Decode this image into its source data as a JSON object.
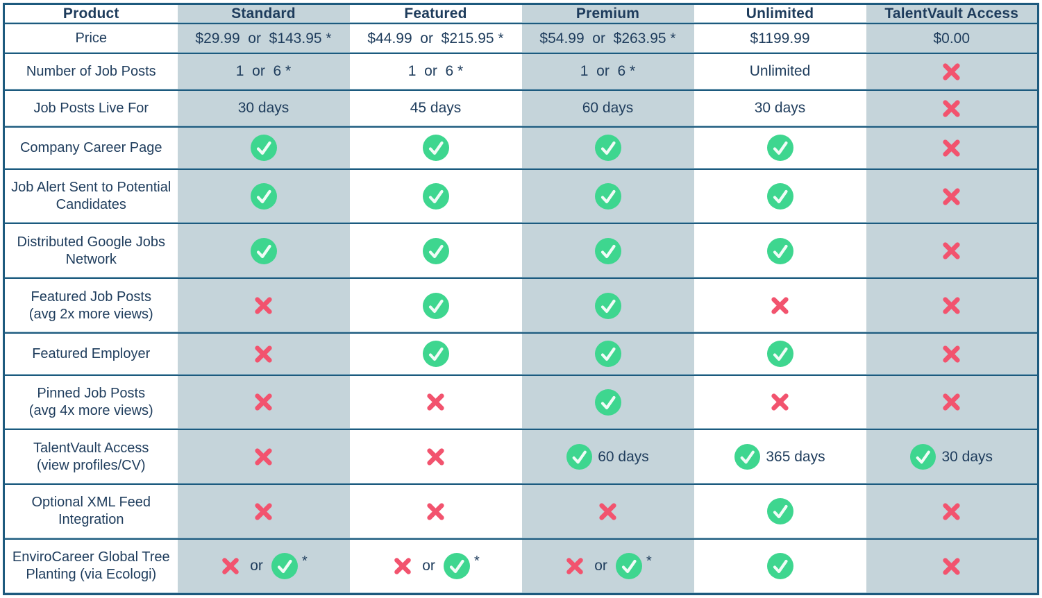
{
  "chart_data": {
    "type": "table",
    "columns": [
      "Product",
      "Standard",
      "Featured",
      "Premium",
      "Unlimited",
      "TalentVault Access"
    ],
    "rows": [
      {
        "label": "Price",
        "cells": [
          {
            "type": "text",
            "value": "$29.99  or  $143.95 *"
          },
          {
            "type": "text",
            "value": "$44.99  or  $215.95 *"
          },
          {
            "type": "text",
            "value": "$54.99  or  $263.95 *"
          },
          {
            "type": "text",
            "value": "$1199.99"
          },
          {
            "type": "text",
            "value": "$0.00"
          }
        ]
      },
      {
        "label": "Number of Job Posts",
        "cells": [
          {
            "type": "text",
            "value": "1  or  6 *"
          },
          {
            "type": "text",
            "value": "1  or  6 *"
          },
          {
            "type": "text",
            "value": "1  or  6 *"
          },
          {
            "type": "text",
            "value": "Unlimited"
          },
          {
            "type": "cross"
          }
        ]
      },
      {
        "label": "Job Posts Live For",
        "cells": [
          {
            "type": "text",
            "value": "30 days"
          },
          {
            "type": "text",
            "value": "45 days"
          },
          {
            "type": "text",
            "value": "60 days"
          },
          {
            "type": "text",
            "value": "30 days"
          },
          {
            "type": "cross"
          }
        ]
      },
      {
        "label": "Company Career Page",
        "cells": [
          {
            "type": "check"
          },
          {
            "type": "check"
          },
          {
            "type": "check"
          },
          {
            "type": "check"
          },
          {
            "type": "cross"
          }
        ]
      },
      {
        "label": "Job Alert Sent to Potential\nCandidates",
        "cells": [
          {
            "type": "check"
          },
          {
            "type": "check"
          },
          {
            "type": "check"
          },
          {
            "type": "check"
          },
          {
            "type": "cross"
          }
        ]
      },
      {
        "label": "Distributed Google Jobs\nNetwork",
        "cells": [
          {
            "type": "check"
          },
          {
            "type": "check"
          },
          {
            "type": "check"
          },
          {
            "type": "check"
          },
          {
            "type": "cross"
          }
        ]
      },
      {
        "label": "Featured Job Posts\n(avg 2x more views)",
        "cells": [
          {
            "type": "cross"
          },
          {
            "type": "check"
          },
          {
            "type": "check"
          },
          {
            "type": "cross"
          },
          {
            "type": "cross"
          }
        ]
      },
      {
        "label": "Featured Employer",
        "cells": [
          {
            "type": "cross"
          },
          {
            "type": "check"
          },
          {
            "type": "check"
          },
          {
            "type": "check"
          },
          {
            "type": "cross"
          }
        ]
      },
      {
        "label": "Pinned Job Posts\n(avg 4x more views)",
        "cells": [
          {
            "type": "cross"
          },
          {
            "type": "cross"
          },
          {
            "type": "check"
          },
          {
            "type": "cross"
          },
          {
            "type": "cross"
          }
        ]
      },
      {
        "label": "TalentVault Access\n(view profiles/CV)",
        "cells": [
          {
            "type": "cross"
          },
          {
            "type": "cross"
          },
          {
            "type": "check_text",
            "value": "60 days"
          },
          {
            "type": "check_text",
            "value": "365 days"
          },
          {
            "type": "check_text",
            "value": "30 days"
          }
        ]
      },
      {
        "label": "Optional XML Feed\nIntegration",
        "cells": [
          {
            "type": "cross"
          },
          {
            "type": "cross"
          },
          {
            "type": "cross"
          },
          {
            "type": "check"
          },
          {
            "type": "cross"
          }
        ]
      },
      {
        "label": "EnviroCareer Global Tree\nPlanting (via Ecologi)",
        "cells": [
          {
            "type": "cross_or_check",
            "or_label": "or",
            "suffix": "*"
          },
          {
            "type": "cross_or_check",
            "or_label": "or",
            "suffix": "*"
          },
          {
            "type": "cross_or_check",
            "or_label": "or",
            "suffix": "*"
          },
          {
            "type": "check"
          },
          {
            "type": "cross"
          }
        ]
      }
    ]
  },
  "icons": {
    "check-icon": "✓",
    "cross-icon": "✕"
  },
  "colors": {
    "stripe": "#c5d4da",
    "border": "#1d5a7e",
    "border_highlight": "#92b8c9",
    "text": "#1e3c5c",
    "check_green": "#3ed68f",
    "check_mark": "#ffffff",
    "cross_pink": "#f2536e",
    "cell_white": "#ffffff"
  }
}
